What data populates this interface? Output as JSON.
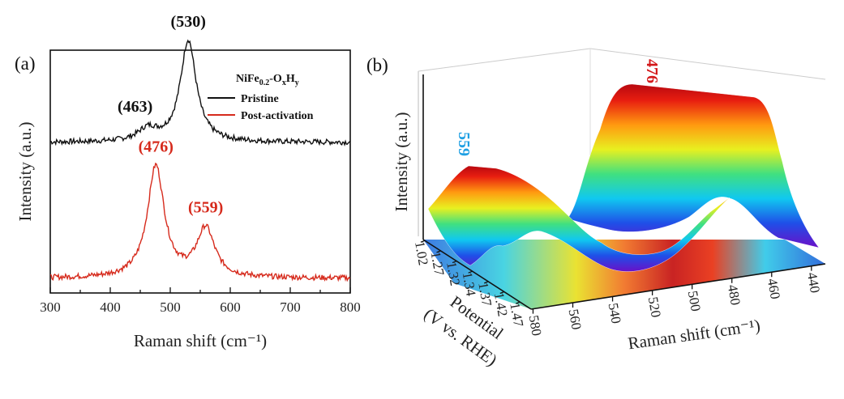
{
  "chart_data": [
    {
      "type": "line",
      "panel_label": "(a)",
      "xlabel": "Raman shift (cm⁻¹)",
      "ylabel": "Intensity (a.u.)",
      "xlim": [
        300,
        800
      ],
      "x_ticks": [
        "300",
        "400",
        "500",
        "600",
        "700",
        "800"
      ],
      "legend_title": "NiFe0.2-OxHy",
      "legend_placement": "top-right",
      "series": [
        {
          "name": "Pristine",
          "color": "#111111",
          "offset": 0.62,
          "peaks": [
            {
              "center": 463,
              "height": 0.05,
              "width": 20
            },
            {
              "center": 530,
              "height": 0.42,
              "width": 16
            }
          ]
        },
        {
          "name": "Post-activation",
          "color": "#d62a1c",
          "offset": 0.06,
          "peaks": [
            {
              "center": 476,
              "height": 0.46,
              "width": 17
            },
            {
              "center": 559,
              "height": 0.2,
              "width": 18
            }
          ]
        }
      ],
      "annotations": [
        {
          "text": "(463)",
          "x": 463,
          "color": "#111111"
        },
        {
          "text": "(530)",
          "x": 530,
          "color": "#111111"
        },
        {
          "text": "(476)",
          "x": 476,
          "color": "#d62a1c"
        },
        {
          "text": "(559)",
          "x": 559,
          "color": "#d62a1c"
        }
      ]
    },
    {
      "type": "surface3d",
      "panel_label": "(b)",
      "xlabel": "Raman shift (cm⁻¹)",
      "ylabel_lines": [
        "Potential",
        "(V vs. RHE)"
      ],
      "zlabel": "Intensity (a.u.)",
      "x_ticks": [
        "580",
        "560",
        "540",
        "520",
        "500",
        "480",
        "460",
        "440"
      ],
      "potential_ticks": [
        "1.02",
        "1.27",
        "1.32",
        "1.34",
        "1.37",
        "1.42",
        "1.47"
      ],
      "annotations": [
        {
          "text": "476",
          "color": "#d4191b"
        },
        {
          "text": "559",
          "color": "#1e9fe3"
        }
      ],
      "colormap": [
        "#6a10c8",
        "#1f4fe8",
        "#10c8f0",
        "#40e080",
        "#e8f020",
        "#ff9a10",
        "#e81e10",
        "#b80810"
      ]
    }
  ]
}
